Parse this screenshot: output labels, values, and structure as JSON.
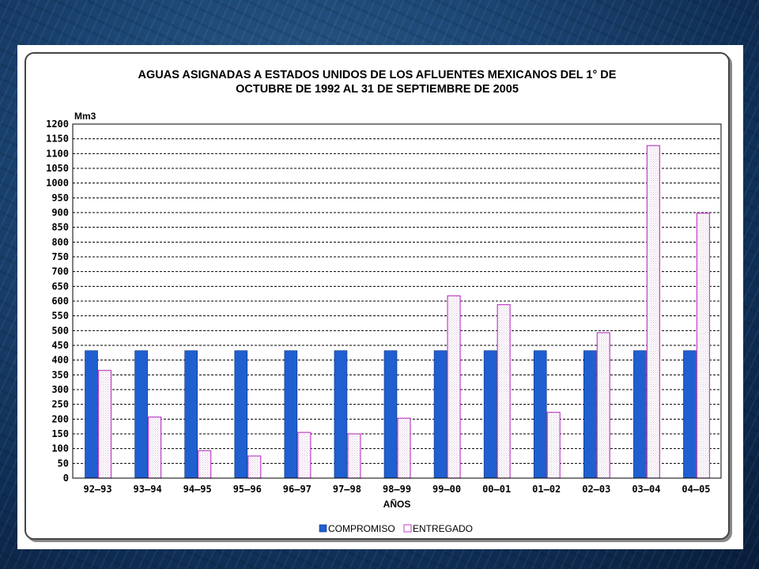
{
  "chart_data": {
    "type": "bar",
    "title": "AGUAS ASIGNADAS A ESTADOS UNIDOS DE LOS AFLUENTES MEXICANOS DEL 1° DE OCTUBRE DE 1992 AL 31 DE SEPTIEMBRE DE 2005",
    "title_lines": [
      "AGUAS ASIGNADAS A ESTADOS UNIDOS DE LOS AFLUENTES MEXICANOS DEL 1° DE",
      "OCTUBRE DE 1992 AL 31 DE SEPTIEMBRE DE 2005"
    ],
    "xlabel": "AÑOS",
    "ylabel": "Mm3",
    "ylim": [
      0,
      1200
    ],
    "ytick_step": 50,
    "grid": true,
    "legend_position": "bottom-center",
    "categories": [
      "92–93",
      "93–94",
      "94–95",
      "95–96",
      "96–97",
      "97–98",
      "98–99",
      "99–00",
      "00–01",
      "01–02",
      "02–03",
      "03–04",
      "04–05"
    ],
    "series": [
      {
        "name": "COMPROMISO",
        "color": "#1f5fd0",
        "values": [
          432,
          432,
          432,
          432,
          432,
          432,
          432,
          432,
          432,
          432,
          432,
          432,
          432
        ]
      },
      {
        "name": "ENTREGADO",
        "color": "#c040c8",
        "values": [
          365,
          207,
          93,
          75,
          155,
          150,
          203,
          618,
          588,
          223,
          493,
          1127,
          898
        ]
      }
    ]
  }
}
